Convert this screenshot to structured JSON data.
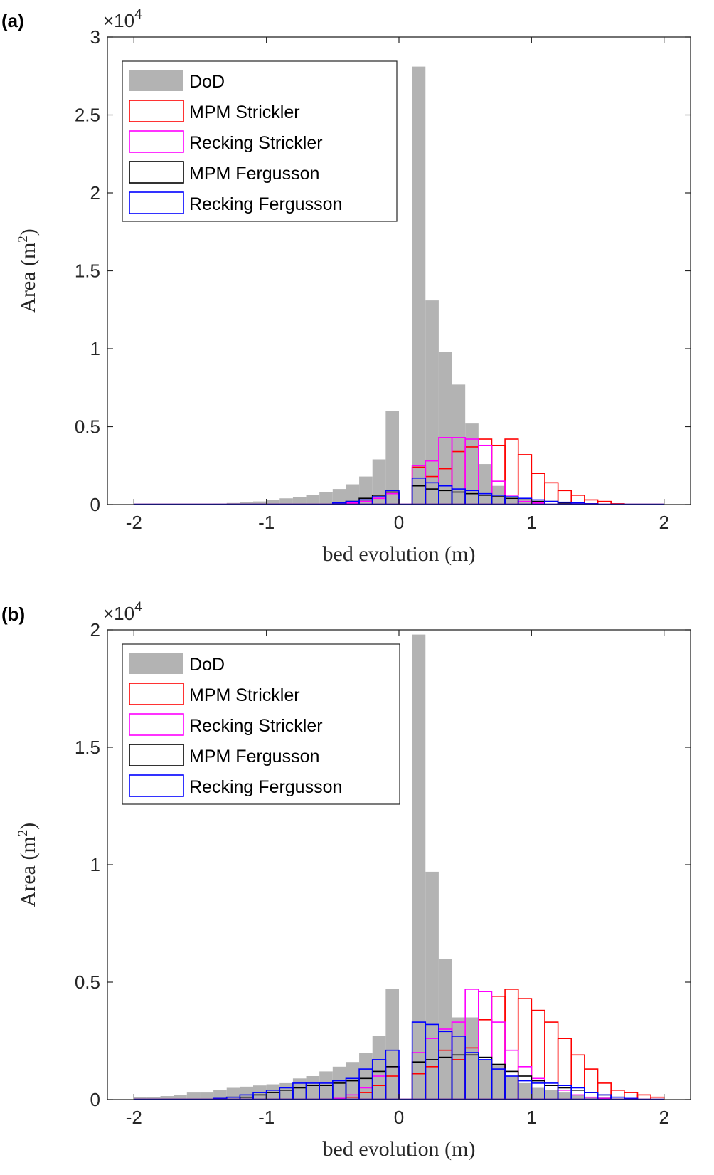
{
  "chart_data": [
    {
      "panel_label": "(a)",
      "type": "bar",
      "xlabel": "bed evolution (m)",
      "ylabel_text": "Area (m",
      "ylabel_sup": "2",
      "ylabel_close": ")",
      "multiplier_text": "×10",
      "multiplier_exp": "4",
      "xlim": [
        -2.2,
        2.2
      ],
      "ylim": [
        0,
        3
      ],
      "xticks": [
        -2,
        -1,
        0,
        1,
        2
      ],
      "xtick_labels": [
        "-2",
        "-1",
        "0",
        "1",
        "2"
      ],
      "yticks": [
        0,
        0.5,
        1,
        1.5,
        2,
        2.5,
        3
      ],
      "ytick_labels": [
        "0",
        "0.5",
        "1",
        "1.5",
        "2",
        "2.5",
        "3"
      ],
      "bin_width": 0.1,
      "x": [
        -2.0,
        -1.9,
        -1.8,
        -1.7,
        -1.6,
        -1.5,
        -1.4,
        -1.3,
        -1.2,
        -1.1,
        -1.0,
        -0.9,
        -0.8,
        -0.7,
        -0.6,
        -0.5,
        -0.4,
        -0.3,
        -0.2,
        -0.1,
        0.0,
        0.1,
        0.2,
        0.3,
        0.4,
        0.5,
        0.6,
        0.7,
        0.8,
        0.9,
        1.0,
        1.1,
        1.2,
        1.3,
        1.4,
        1.5,
        1.6,
        1.7,
        1.8,
        1.9
      ],
      "legend": {
        "position": "top-left"
      },
      "series": [
        {
          "name": "DoD",
          "color": "#b3b3b3",
          "style": "filled",
          "values": [
            0,
            0,
            0,
            0,
            0,
            0,
            0.005,
            0.01,
            0.015,
            0.02,
            0.03,
            0.04,
            0.05,
            0.06,
            0.08,
            0.1,
            0.13,
            0.18,
            0.29,
            0.6,
            0,
            2.81,
            1.31,
            0.98,
            0.77,
            0.52,
            0.26,
            0.12,
            0.04,
            0.02,
            0.01,
            0.005,
            0,
            0,
            0,
            0,
            0,
            0,
            0,
            0
          ]
        },
        {
          "name": "MPM Strickler",
          "color": "#ff0000",
          "style": "outline",
          "values": [
            0,
            0,
            0,
            0,
            0,
            0,
            0,
            0,
            0,
            0,
            0,
            0,
            0,
            0,
            0,
            0,
            0.01,
            0.02,
            0.04,
            0.07,
            0,
            0.24,
            0.18,
            0.23,
            0.34,
            0.37,
            0.42,
            0.38,
            0.42,
            0.32,
            0.2,
            0.14,
            0.09,
            0.06,
            0.03,
            0.02,
            0.005,
            0,
            0,
            0
          ]
        },
        {
          "name": "Recking Strickler",
          "color": "#ff00ff",
          "style": "outline",
          "values": [
            0,
            0,
            0,
            0,
            0,
            0,
            0,
            0,
            0,
            0,
            0,
            0,
            0,
            0,
            0,
            0,
            0.01,
            0.02,
            0.04,
            0.07,
            0,
            0.25,
            0.28,
            0.43,
            0.43,
            0.42,
            0.38,
            0.15,
            0.06,
            0.02,
            0.01,
            0,
            0,
            0,
            0,
            0,
            0,
            0,
            0,
            0
          ]
        },
        {
          "name": "MPM Fergusson",
          "color": "#000000",
          "style": "outline",
          "values": [
            0,
            0,
            0,
            0,
            0,
            0,
            0,
            0,
            0,
            0,
            0,
            0,
            0,
            0,
            0,
            0.01,
            0.02,
            0.04,
            0.06,
            0.08,
            0,
            0.12,
            0.1,
            0.09,
            0.08,
            0.07,
            0.06,
            0.05,
            0.04,
            0.03,
            0.02,
            0.02,
            0.01,
            0.01,
            0.005,
            0,
            0,
            0,
            0,
            0
          ]
        },
        {
          "name": "Recking Fergusson",
          "color": "#0000ff",
          "style": "outline",
          "values": [
            0,
            0,
            0,
            0,
            0,
            0,
            0,
            0,
            0,
            0,
            0,
            0,
            0,
            0,
            0,
            0.01,
            0.02,
            0.03,
            0.05,
            0.09,
            0,
            0.17,
            0.14,
            0.12,
            0.1,
            0.09,
            0.07,
            0.06,
            0.05,
            0.04,
            0.03,
            0.02,
            0.015,
            0.01,
            0.005,
            0,
            0,
            0,
            0,
            0
          ]
        }
      ]
    },
    {
      "panel_label": "(b)",
      "type": "bar",
      "xlabel": "bed evolution (m)",
      "ylabel_text": "Area (m",
      "ylabel_sup": "2",
      "ylabel_close": ")",
      "multiplier_text": "×10",
      "multiplier_exp": "4",
      "xlim": [
        -2.2,
        2.2
      ],
      "ylim": [
        0,
        2
      ],
      "xticks": [
        -2,
        -1,
        0,
        1,
        2
      ],
      "xtick_labels": [
        "-2",
        "-1",
        "0",
        "1",
        "2"
      ],
      "yticks": [
        0,
        0.5,
        1,
        1.5,
        2
      ],
      "ytick_labels": [
        "0",
        "0.5",
        "1",
        "1.5",
        "2"
      ],
      "bin_width": 0.1,
      "x": [
        -2.0,
        -1.9,
        -1.8,
        -1.7,
        -1.6,
        -1.5,
        -1.4,
        -1.3,
        -1.2,
        -1.1,
        -1.0,
        -0.9,
        -0.8,
        -0.7,
        -0.6,
        -0.5,
        -0.4,
        -0.3,
        -0.2,
        -0.1,
        0.0,
        0.1,
        0.2,
        0.3,
        0.4,
        0.5,
        0.6,
        0.7,
        0.8,
        0.9,
        1.0,
        1.1,
        1.2,
        1.3,
        1.4,
        1.5,
        1.6,
        1.7,
        1.8,
        1.9
      ],
      "legend": {
        "position": "top-left"
      },
      "series": [
        {
          "name": "DoD",
          "color": "#b3b3b3",
          "style": "filled",
          "values": [
            0.01,
            0.01,
            0.015,
            0.02,
            0.03,
            0.03,
            0.04,
            0.05,
            0.055,
            0.06,
            0.065,
            0.07,
            0.09,
            0.1,
            0.12,
            0.14,
            0.16,
            0.2,
            0.27,
            0.47,
            0,
            1.98,
            0.97,
            0.6,
            0.35,
            0.35,
            0.17,
            0.15,
            0.1,
            0.07,
            0.05,
            0.04,
            0.03,
            0.02,
            0.01,
            0.01,
            0.005,
            0,
            0,
            0
          ]
        },
        {
          "name": "MPM Strickler",
          "color": "#ff0000",
          "style": "outline",
          "values": [
            0,
            0,
            0,
            0,
            0,
            0,
            0,
            0,
            0,
            0,
            0,
            0,
            0,
            0,
            0,
            0.005,
            0.01,
            0.03,
            0.06,
            0.1,
            0,
            0.11,
            0.14,
            0.21,
            0.17,
            0.22,
            0.34,
            0.44,
            0.47,
            0.43,
            0.38,
            0.33,
            0.26,
            0.19,
            0.13,
            0.07,
            0.04,
            0.03,
            0.02,
            0.01
          ]
        },
        {
          "name": "Recking Strickler",
          "color": "#ff00ff",
          "style": "outline",
          "values": [
            0,
            0,
            0,
            0,
            0,
            0,
            0,
            0,
            0,
            0,
            0,
            0,
            0,
            0,
            0,
            0.005,
            0.02,
            0.05,
            0.1,
            0.14,
            0,
            0.2,
            0.26,
            0.3,
            0.33,
            0.47,
            0.46,
            0.33,
            0.21,
            0.14,
            0.09,
            0.06,
            0.04,
            0.02,
            0.01,
            0.005,
            0,
            0,
            0,
            0
          ]
        },
        {
          "name": "MPM Fergusson",
          "color": "#000000",
          "style": "outline",
          "values": [
            0,
            0,
            0,
            0,
            0,
            0,
            0.005,
            0.01,
            0.01,
            0.02,
            0.03,
            0.04,
            0.05,
            0.06,
            0.06,
            0.07,
            0.08,
            0.09,
            0.12,
            0.14,
            0,
            0.16,
            0.17,
            0.18,
            0.19,
            0.19,
            0.18,
            0.15,
            0.12,
            0.1,
            0.08,
            0.06,
            0.05,
            0.04,
            0.03,
            0.02,
            0.01,
            0,
            0,
            0
          ]
        },
        {
          "name": "Recking Fergusson",
          "color": "#0000ff",
          "style": "outline",
          "values": [
            0,
            0,
            0,
            0,
            0,
            0,
            0.005,
            0.01,
            0.02,
            0.03,
            0.04,
            0.05,
            0.07,
            0.07,
            0.07,
            0.08,
            0.09,
            0.13,
            0.17,
            0.21,
            0,
            0.33,
            0.32,
            0.29,
            0.27,
            0.2,
            0.17,
            0.13,
            0.1,
            0.08,
            0.07,
            0.07,
            0.06,
            0.05,
            0.03,
            0.02,
            0.01,
            0.005,
            0,
            0
          ]
        }
      ]
    }
  ]
}
